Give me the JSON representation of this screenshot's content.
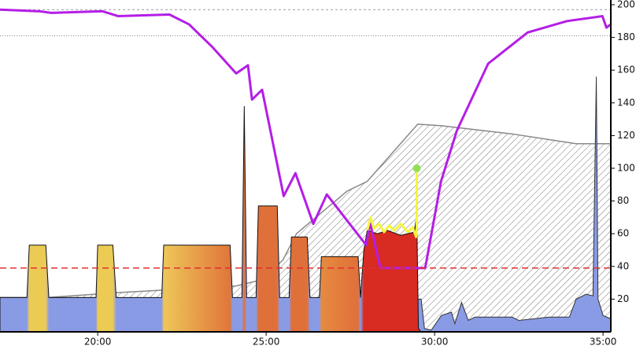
{
  "chart_data": {
    "type": "combo",
    "xlim": [
      17.1,
      35.23
    ],
    "ylim": [
      0,
      200
    ],
    "xticks": [
      {
        "value": 20,
        "label": "20:00"
      },
      {
        "value": 25,
        "label": "25:00"
      },
      {
        "value": 30,
        "label": "30:00"
      },
      {
        "value": 35,
        "label": "35:00"
      }
    ],
    "yticks": [
      20,
      40,
      60,
      80,
      100,
      120,
      140,
      160,
      180,
      200
    ],
    "series": [
      {
        "type": "hatched-area",
        "color": "#888888",
        "x": [
          17.1,
          18.5,
          20.6,
          24.1,
          24.9,
          25.5,
          25.9,
          27.4,
          28.0,
          29.5,
          30.2,
          32.3,
          34.2,
          35.23
        ],
        "values": [
          21,
          21,
          24,
          28,
          32,
          44,
          60,
          86,
          92,
          127,
          126,
          121,
          115,
          115
        ]
      },
      {
        "type": "area",
        "color": "#8a9be6",
        "x": [
          17.1,
          18.6,
          20.5,
          20.6,
          20.8,
          24.1,
          25.5,
          27.9,
          29.6,
          29.7,
          29.9,
          30.2,
          30.5,
          30.6,
          30.8,
          31.0,
          31.2,
          32.3,
          32.5,
          33.4,
          34.0,
          34.2,
          34.5,
          34.7,
          34.8,
          34.85,
          35.0,
          35.23
        ],
        "values": [
          21,
          21,
          21,
          12,
          20,
          20,
          20,
          20,
          20,
          2,
          1,
          10,
          12,
          5,
          18,
          7,
          9,
          9,
          7,
          9,
          9,
          20,
          23,
          22,
          156,
          20,
          10,
          8
        ]
      },
      {
        "type": "gradient-area",
        "x": [
          17.1,
          17.9,
          17.97,
          18.46,
          18.55,
          19.95,
          20.0,
          20.45,
          20.55,
          21.9,
          21.96,
          23.93,
          24.0,
          24.28,
          24.35,
          24.42,
          24.7,
          24.77,
          25.33,
          25.4,
          25.68,
          25.75,
          26.22,
          26.3,
          26.58,
          26.64,
          27.73,
          27.8,
          27.9,
          28.0,
          28.3,
          28.6,
          29.0,
          29.4,
          29.47,
          29.52,
          29.6
        ],
        "values": [
          21,
          21,
          53,
          53,
          21,
          21,
          53,
          53,
          21,
          21,
          53,
          53,
          21,
          21,
          138,
          21,
          21,
          77,
          77,
          21,
          21,
          58,
          58,
          21,
          21,
          46,
          46,
          21,
          50,
          62,
          60,
          62,
          59,
          61,
          72,
          2,
          0
        ],
        "colors": [
          "#8a9be6",
          "#8a9be6",
          "#eccb55",
          "#eccb55",
          "#8a9be6",
          "#8a9be6",
          "#eccb55",
          "#eccb55",
          "#8a9be6",
          "#8a9be6",
          "#eec659",
          "#e0763a",
          "#8a9be6",
          "#8a9be6",
          "#e0703a",
          "#8a9be6",
          "#8a9be6",
          "#e0703a",
          "#e0703a",
          "#8a9be6",
          "#8a9be6",
          "#e0703a",
          "#e0703a",
          "#8a9be6",
          "#8a9be6",
          "#e58a40",
          "#e0703a",
          "#8a9be6",
          "#d82b22",
          "#d82b22",
          "#d82b22",
          "#d82b22",
          "#d82b22",
          "#d82b22",
          "#d82b22",
          "#d82b22",
          "#d82b22"
        ]
      },
      {
        "type": "line",
        "color": "#b41ee6",
        "width": 3,
        "x": [
          17.1,
          18.27,
          18.62,
          20.14,
          20.61,
          22.13,
          22.71,
          23.41,
          24.11,
          24.46,
          24.58,
          24.88,
          25.52,
          25.87,
          26.4,
          26.8,
          27.97,
          28.08,
          28.39,
          29.72,
          30.19,
          30.66,
          31.59,
          32.76,
          33.93,
          34.98,
          35.1,
          35.23
        ],
        "values": [
          197,
          196,
          195,
          196,
          193,
          194,
          188,
          174,
          158,
          163,
          142,
          148,
          83,
          97,
          66,
          84,
          53,
          67,
          39,
          39,
          92,
          123,
          164,
          183,
          190,
          193,
          186,
          188
        ]
      },
      {
        "type": "line",
        "color": "#f5f540",
        "width": 3,
        "end_marker_color": "#90e050",
        "x": [
          28.0,
          28.1,
          28.2,
          28.35,
          28.5,
          28.65,
          28.8,
          29.0,
          29.2,
          29.35,
          29.45,
          29.47,
          29.47
        ],
        "values": [
          62,
          70,
          63,
          66,
          61,
          65,
          62,
          66,
          61,
          64,
          58,
          64,
          100
        ]
      }
    ],
    "reference_lines": [
      {
        "value": 197,
        "color": "#9999aa",
        "dash": "3,3"
      },
      {
        "value": 181,
        "color": "#888888",
        "dash": "1,2"
      },
      {
        "value": 39,
        "color": "#e03030",
        "dash": "8,5"
      }
    ]
  }
}
